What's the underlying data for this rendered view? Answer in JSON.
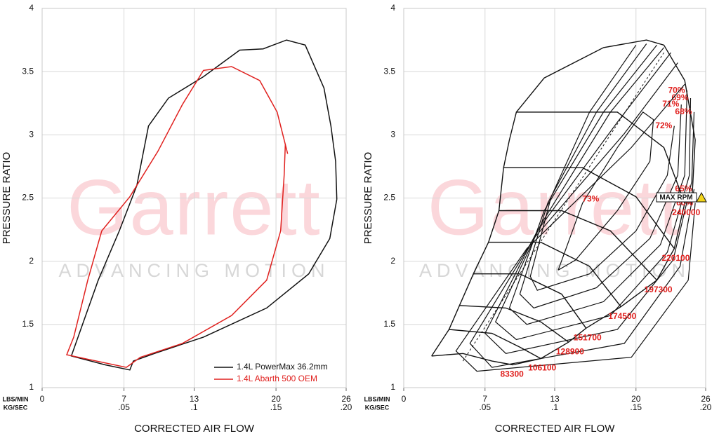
{
  "chart_data": [
    {
      "type": "line",
      "x_label": "CORRECTED AIR FLOW",
      "y_label": "PRESSURE RATIO",
      "x_units": [
        "LBS/MIN",
        "KG/SEC"
      ],
      "xlim": [
        0,
        26
      ],
      "xticks": [
        0,
        7,
        13,
        20,
        26
      ],
      "xticks_secondary": [
        null,
        ".05",
        ".1",
        ".15",
        ".20"
      ],
      "ylim": [
        1,
        4
      ],
      "yticks": [
        1,
        1.5,
        2,
        2.5,
        3,
        3.5,
        4
      ],
      "grid": true,
      "watermark": {
        "brand": "Garrett",
        "tagline": "ADVANCING MOTION"
      },
      "legend": "lower right",
      "series": [
        {
          "name": "1.4L PowerMax 36.2mm",
          "color": "#111111",
          "x": [
            25.2,
            25.1,
            24.7,
            24.1,
            22.5,
            20.9,
            18.9,
            16.9,
            13.8,
            10.8,
            9.1,
            8.1,
            6.6,
            4.8,
            3.3,
            2.5,
            5.4,
            7.5,
            7.8,
            9.6,
            13.8,
            19.2,
            22.8,
            24.6,
            25.2
          ],
          "y": [
            2.49,
            2.79,
            3.07,
            3.37,
            3.71,
            3.75,
            3.68,
            3.67,
            3.46,
            3.29,
            3.07,
            2.6,
            2.24,
            1.85,
            1.46,
            1.25,
            1.18,
            1.14,
            1.21,
            1.27,
            1.4,
            1.63,
            1.9,
            2.18,
            2.49
          ]
        },
        {
          "name": "1.4L Abarth 500 OEM",
          "color": "#e0201e",
          "x": [
            21.0,
            20.1,
            18.6,
            16.2,
            13.8,
            12,
            9.9,
            7.5,
            5.1,
            3.9,
            2.7,
            2.1,
            7.2,
            8.4,
            12,
            16.2,
            19.2,
            20.4,
            20.7,
            20.8
          ],
          "y": [
            2.85,
            3.18,
            3.43,
            3.54,
            3.51,
            3.24,
            2.87,
            2.51,
            2.24,
            1.85,
            1.4,
            1.26,
            1.16,
            1.24,
            1.35,
            1.57,
            1.85,
            2.24,
            2.68,
            2.93
          ]
        }
      ]
    },
    {
      "type": "contour",
      "x_label": "CORRECTED AIR FLOW",
      "y_label": "PRESSURE RATIO",
      "x_units": [
        "LBS/MIN",
        "KG/SEC"
      ],
      "xlim": [
        0,
        26
      ],
      "xticks": [
        0,
        7,
        13,
        20,
        26
      ],
      "xticks_secondary": [
        null,
        ".05",
        ".1",
        ".15",
        ".20"
      ],
      "ylim": [
        1,
        4
      ],
      "yticks": [
        1,
        1.5,
        2,
        2.5,
        3,
        3.5,
        4
      ],
      "grid": true,
      "watermark": {
        "brand": "Garrett",
        "tagline": "ADVANCING MOTION"
      },
      "line_color": "#111111",
      "label_color": "#e0201e",
      "annotation": "MAX RPM",
      "envelope": {
        "x": [
          2.4,
          3.9,
          4.8,
          6.0,
          7.3,
          8.2,
          8.6,
          9.1,
          9.7,
          12.1,
          17.2,
          20.9,
          22.4,
          24.2,
          25.1,
          24.8
        ],
        "y": [
          1.25,
          1.46,
          1.65,
          1.9,
          2.15,
          2.4,
          2.74,
          2.96,
          3.18,
          3.45,
          3.69,
          3.75,
          3.71,
          3.43,
          2.96,
          2.46
        ]
      },
      "choke": {
        "x": [
          9.4,
          11.8,
          14.2,
          15.7,
          18.7,
          21.8,
          23.3,
          24.2,
          24.8
        ],
        "y": [
          1.18,
          1.23,
          1.36,
          1.47,
          1.64,
          1.85,
          2.1,
          2.46,
          2.46
        ]
      },
      "peak_line": {
        "x": [
          5.1,
          22.4
        ],
        "y": [
          1.21,
          3.65
        ]
      },
      "speed_lines": [
        {
          "rpm": 83300,
          "x": [
            2.4,
            5.1,
            7.6,
            9.4
          ],
          "y": [
            1.25,
            1.27,
            1.21,
            1.18
          ]
        },
        {
          "rpm": 106100,
          "x": [
            3.9,
            7.6,
            10.0,
            11.8
          ],
          "y": [
            1.46,
            1.43,
            1.32,
            1.23
          ]
        },
        {
          "rpm": 128900,
          "x": [
            4.8,
            8.8,
            11.8,
            14.2
          ],
          "y": [
            1.65,
            1.63,
            1.52,
            1.36
          ]
        },
        {
          "rpm": 151700,
          "x": [
            6.0,
            10.0,
            13.6,
            15.7
          ],
          "y": [
            1.9,
            1.9,
            1.74,
            1.47
          ]
        },
        {
          "rpm": 174500,
          "x": [
            7.3,
            11.8,
            16.0,
            18.7
          ],
          "y": [
            2.15,
            2.15,
            1.96,
            1.64
          ]
        },
        {
          "rpm": 197300,
          "x": [
            8.2,
            13.6,
            17.8,
            21.8
          ],
          "y": [
            2.4,
            2.4,
            2.24,
            1.85
          ]
        },
        {
          "rpm": 220100,
          "x": [
            8.6,
            15.4,
            20.0,
            23.3
          ],
          "y": [
            2.74,
            2.74,
            2.51,
            2.1
          ]
        },
        {
          "rpm": 240000,
          "x": [
            9.7,
            18.4,
            22.4,
            24.2
          ],
          "y": [
            3.18,
            3.18,
            2.9,
            2.46
          ]
        }
      ],
      "efficiency": [
        {
          "label": "73%",
          "x": [
            13.3,
            15.4,
            18.4,
            20.6,
            21.5,
            21.2,
            18.4,
            14.8,
            13.3
          ],
          "y": [
            1.93,
            2.46,
            2.9,
            3.18,
            3.12,
            2.79,
            2.4,
            2.01,
            1.93
          ]
        },
        {
          "label": "72%",
          "x": [
            20.0,
            16.0,
            12.7,
            10.9,
            11.5,
            16.0,
            20.0,
            22.7,
            23.3
          ],
          "y": [
            3.71,
            3.18,
            2.51,
            1.88,
            1.77,
            1.9,
            2.24,
            2.68,
            3.07
          ]
        },
        {
          "label": "71%",
          "x": [
            20.9,
            16.6,
            12.4,
            10.0,
            11.2,
            16.6,
            21.2,
            23.6,
            23.9
          ],
          "y": [
            3.72,
            3.18,
            2.46,
            1.74,
            1.63,
            1.79,
            2.18,
            2.68,
            3.24
          ]
        },
        {
          "label": "70%",
          "x": [
            21.8,
            17.2,
            12.1,
            9.1,
            10.6,
            17.2,
            22.1,
            24.2,
            24.4
          ],
          "y": [
            3.71,
            3.18,
            2.4,
            1.63,
            1.5,
            1.68,
            2.13,
            2.68,
            3.35
          ]
        },
        {
          "label": "69%",
          "x": [
            22.4,
            17.8,
            11.8,
            7.9,
            9.7,
            17.8,
            22.7,
            24.6,
            24.7
          ],
          "y": [
            3.69,
            3.18,
            2.29,
            1.52,
            1.38,
            1.57,
            2.07,
            2.68,
            3.29
          ]
        },
        {
          "label": "68%",
          "x": [
            23.0,
            18.4,
            11.5,
            7.0,
            8.8,
            18.4,
            23.2,
            24.8,
            25.0
          ],
          "y": [
            3.65,
            3.1,
            2.24,
            1.43,
            1.27,
            1.46,
            2.01,
            2.63,
            3.18
          ]
        },
        {
          "label": "65%",
          "x": [
            23.6,
            19.0,
            11.2,
            5.7,
            7.6,
            19.0,
            23.8,
            25.0
          ],
          "y": [
            3.57,
            3.01,
            2.18,
            1.35,
            1.16,
            1.35,
            1.96,
            2.57
          ]
        },
        {
          "label": "60%",
          "x": [
            24.2,
            19.6,
            10.6,
            4.5,
            6.3,
            19.6,
            24.5,
            25.1
          ],
          "y": [
            3.4,
            2.9,
            2.1,
            1.29,
            1.13,
            1.24,
            1.85,
            2.46
          ]
        }
      ]
    }
  ]
}
